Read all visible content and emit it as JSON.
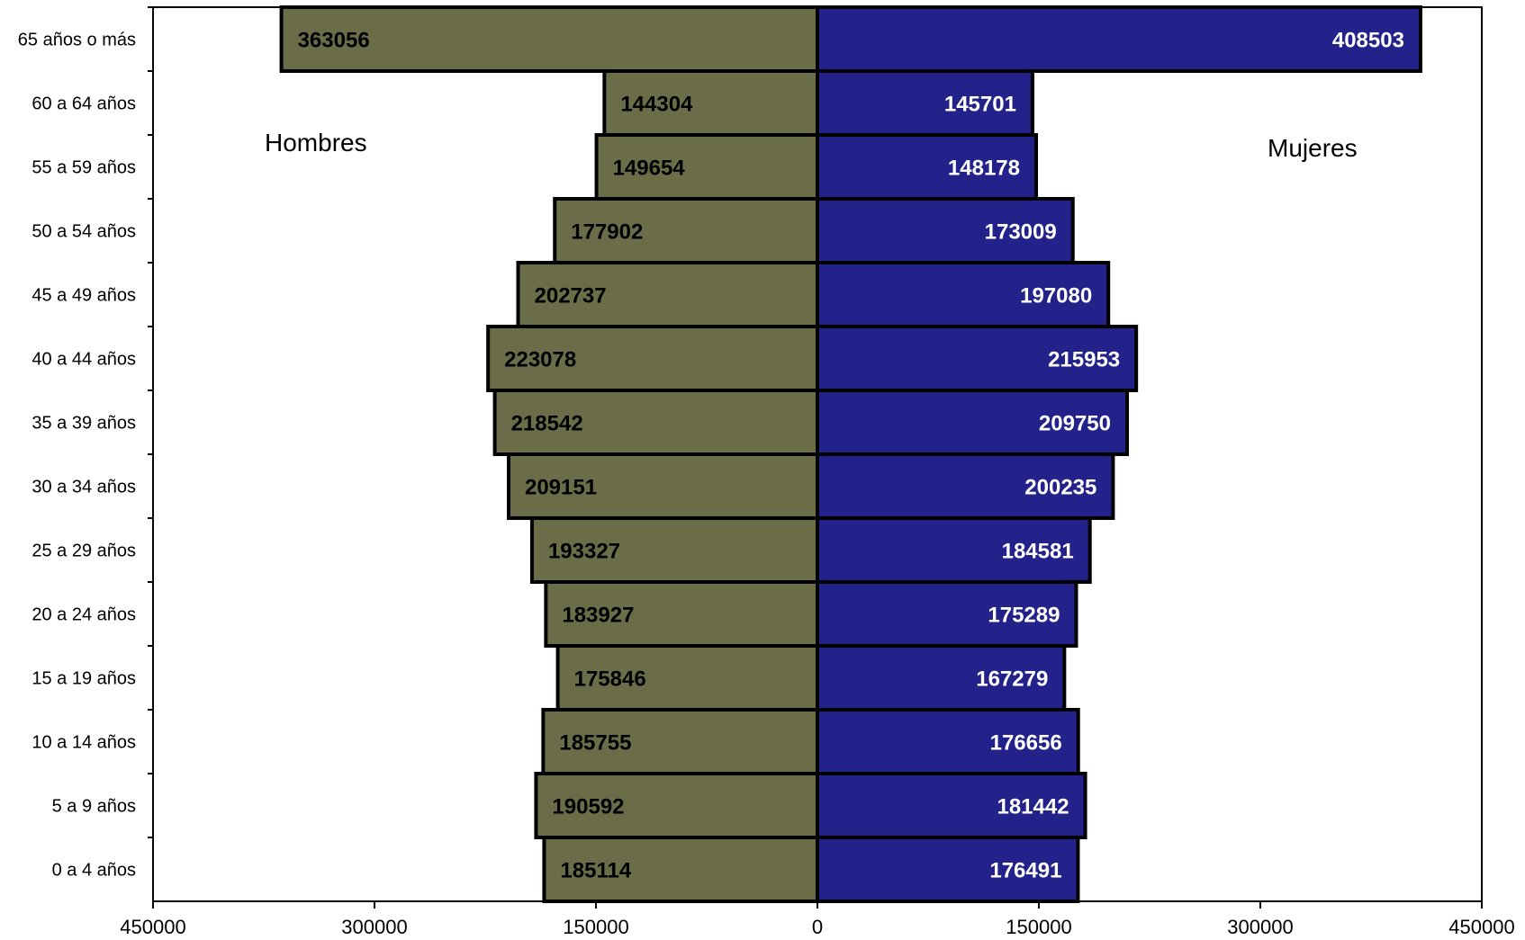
{
  "chart_data": {
    "type": "bar",
    "orientation": "horizontal",
    "title": "",
    "categories": [
      "65 años o más",
      "60 a 64 años",
      "55 a 59 años",
      "50 a 54 años",
      "45 a 49 años",
      "40 a 44 años",
      "35 a 39 años",
      "30 a 34 años",
      "25 a 29 años",
      "20 a 24 años",
      "15 a 19 años",
      "10 a 14 años",
      "5 a 9 años",
      "0 a 4 años"
    ],
    "series": [
      {
        "name": "Hombres",
        "color": "#6a6d48",
        "label_color": "#000000",
        "values": [
          363056,
          144304,
          149654,
          177902,
          202737,
          223078,
          218542,
          209151,
          193327,
          183927,
          175846,
          185755,
          190592,
          185114
        ]
      },
      {
        "name": "Mujeres",
        "color": "#22228a",
        "label_color": "#ffffff",
        "values": [
          408503,
          145701,
          148178,
          173009,
          197080,
          215953,
          209750,
          200235,
          184581,
          175289,
          167279,
          176656,
          181442,
          176491
        ]
      }
    ],
    "xlim": [
      -450000,
      450000
    ],
    "x_ticks": [
      -450000,
      -300000,
      -150000,
      0,
      150000,
      300000,
      450000
    ],
    "x_tick_labels": [
      "450000",
      "300000",
      "150000",
      "0",
      "150000",
      "300000",
      "450000"
    ],
    "grid": false,
    "legend": "none"
  }
}
